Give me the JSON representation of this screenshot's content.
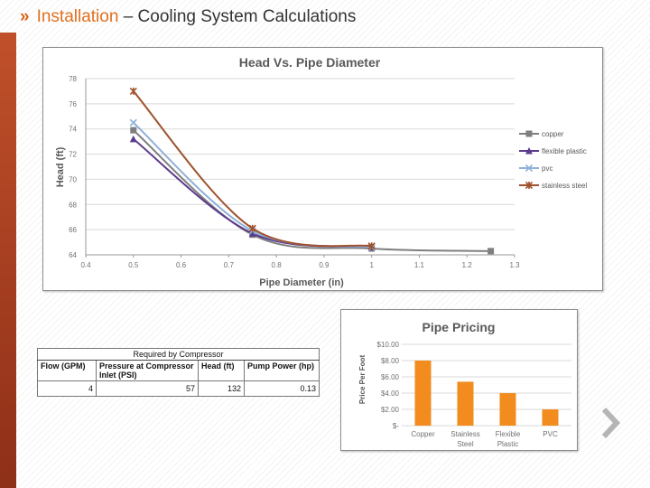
{
  "slide": {
    "bullet": "»",
    "title_part1": "Installation",
    "title_part2": " – Cooling System Calculations"
  },
  "chart_data": [
    {
      "type": "line",
      "title": "Head Vs. Pipe Diameter",
      "xlabel": "Pipe Diameter (in)",
      "ylabel": "Head (ft)",
      "xlim": [
        0.4,
        1.3
      ],
      "ylim": [
        64,
        78
      ],
      "xticks": [
        "0.4",
        "0.5",
        "0.6",
        "0.7",
        "0.8",
        "0.9",
        "1",
        "1.1",
        "1.2",
        "1.3"
      ],
      "yticks": [
        "64",
        "66",
        "68",
        "70",
        "72",
        "74",
        "76",
        "78"
      ],
      "grid": true,
      "legend": "right",
      "series": [
        {
          "name": "copper",
          "color": "#7f7f7f",
          "marker": "square",
          "x": [
            0.5,
            0.75,
            1,
            1.25
          ],
          "y": [
            73.9,
            65.6,
            64.5,
            64.3
          ]
        },
        {
          "name": "flexible plastic",
          "color": "#5b3b8c",
          "marker": "triangle",
          "x": [
            0.5,
            0.75,
            1
          ],
          "y": [
            73.2,
            65.7,
            64.6
          ]
        },
        {
          "name": "pvc",
          "color": "#8fb0d8",
          "marker": "x",
          "x": [
            0.5,
            0.75,
            1
          ],
          "y": [
            74.5,
            65.9,
            64.6
          ]
        },
        {
          "name": "stainless steel",
          "color": "#a0522d",
          "marker": "star",
          "x": [
            0.5,
            0.75,
            1
          ],
          "y": [
            77.0,
            66.1,
            64.7
          ]
        }
      ]
    },
    {
      "type": "bar",
      "title": "Pipe Pricing",
      "ylabel": "Price Per Foot",
      "ylim": [
        0,
        10
      ],
      "yticks": [
        "$-",
        "$2.00",
        "$4.00",
        "$6.00",
        "$8.00",
        "$10.00"
      ],
      "categories": [
        "Copper",
        "Stainless Steel",
        "Flexible Plastic",
        "PVC"
      ],
      "values": [
        8.0,
        5.4,
        4.0,
        2.0
      ],
      "color": "#f28c1e",
      "grid": true
    }
  ],
  "table": {
    "caption": "Required by Compressor",
    "headers": [
      "Flow (GPM)",
      "Pressure at Compressor Inlet (PSI)",
      "Head (ft)",
      "Pump Power (hp)"
    ],
    "rows": [
      [
        "4",
        "57",
        "132",
        "0.13"
      ]
    ]
  },
  "nav": {
    "next_icon": "chevron-right-icon",
    "color": "#b0b0b0"
  }
}
